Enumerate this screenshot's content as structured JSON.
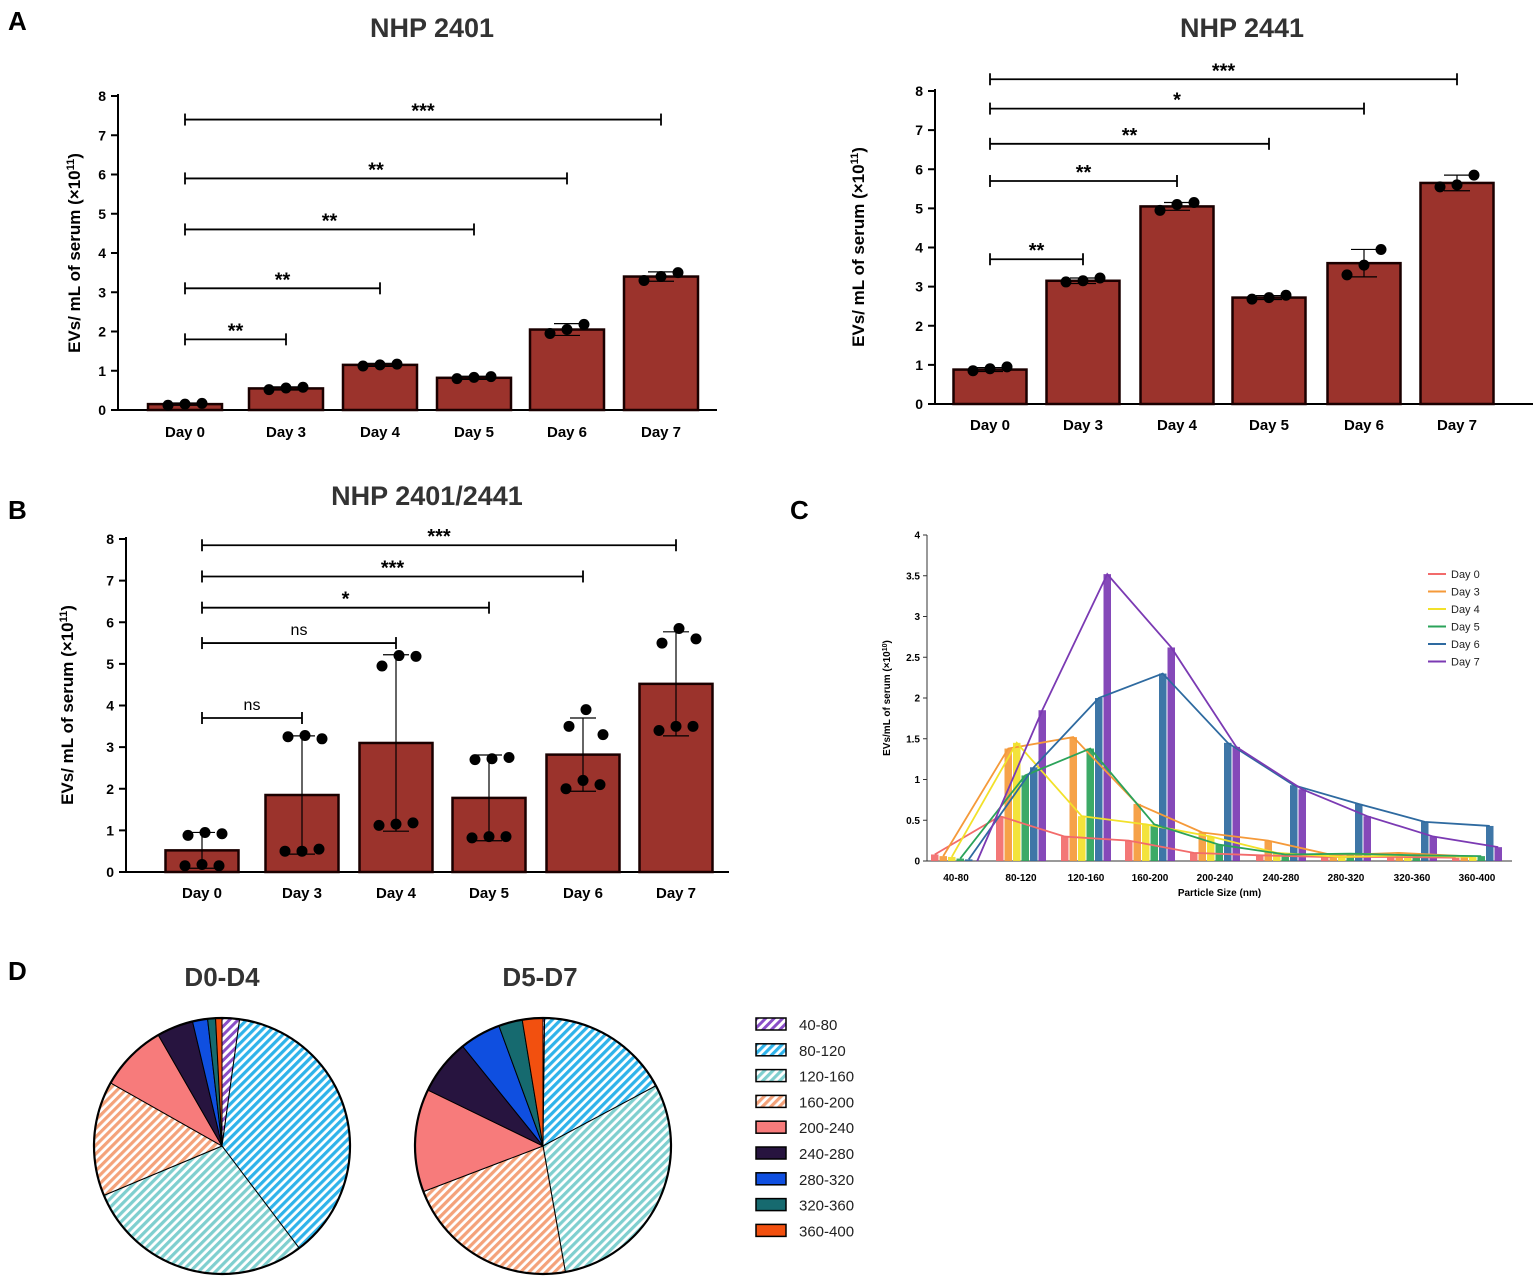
{
  "panel_labels": {
    "A": "A",
    "B": "B",
    "C": "C",
    "D": "D"
  },
  "chart_data": [
    {
      "id": "A1",
      "type": "bar",
      "title": "NHP 2401",
      "ylabel": "EVs/ mL of serum (×10",
      "ylabel_sup": "11",
      "ylabel_close": ")",
      "categories": [
        "Day 0",
        "Day 3",
        "Day 4",
        "Day 5",
        "Day 6",
        "Day 7"
      ],
      "values": [
        0.15,
        0.55,
        1.15,
        0.82,
        2.05,
        3.4
      ],
      "errors": [
        0.03,
        0.04,
        0.04,
        0.04,
        0.15,
        0.12
      ],
      "points": [
        [
          0.12,
          0.15,
          0.17
        ],
        [
          0.52,
          0.56,
          0.58
        ],
        [
          1.12,
          1.15,
          1.17
        ],
        [
          0.8,
          0.83,
          0.85
        ],
        [
          1.95,
          2.05,
          2.18
        ],
        [
          3.3,
          3.4,
          3.5
        ]
      ],
      "ylim": [
        0,
        8
      ],
      "yticks": [
        "0",
        "1",
        "2",
        "3",
        "4",
        "5",
        "6",
        "7",
        "8"
      ],
      "comparisons": [
        {
          "to": 1,
          "label": "**",
          "y": 1.8
        },
        {
          "to": 2,
          "label": "**",
          "y": 3.1
        },
        {
          "to": 3,
          "label": "**",
          "y": 4.6
        },
        {
          "to": 4,
          "label": "**",
          "y": 5.9
        },
        {
          "to": 5,
          "label": "***",
          "y": 7.4
        }
      ]
    },
    {
      "id": "A2",
      "type": "bar",
      "title": "NHP 2441",
      "ylabel": "EVs/ mL of serum (×10",
      "ylabel_sup": "11",
      "ylabel_close": ")",
      "categories": [
        "Day 0",
        "Day 3",
        "Day 4",
        "Day 5",
        "Day 6",
        "Day 7"
      ],
      "values": [
        0.88,
        3.15,
        5.05,
        2.72,
        3.6,
        5.65
      ],
      "errors": [
        0.05,
        0.07,
        0.1,
        0.05,
        0.35,
        0.2
      ],
      "points": [
        [
          0.85,
          0.9,
          0.95
        ],
        [
          3.12,
          3.15,
          3.22
        ],
        [
          4.95,
          5.1,
          5.15
        ],
        [
          2.68,
          2.72,
          2.78
        ],
        [
          3.3,
          3.55,
          3.95
        ],
        [
          5.55,
          5.6,
          5.85
        ]
      ],
      "ylim": [
        0,
        8
      ],
      "yticks": [
        "0",
        "1",
        "2",
        "3",
        "4",
        "5",
        "6",
        "7",
        "8"
      ],
      "comparisons": [
        {
          "to": 1,
          "label": "**",
          "y": 3.7
        },
        {
          "to": 2,
          "label": "**",
          "y": 5.7
        },
        {
          "to": 3,
          "label": "**",
          "y": 6.65
        },
        {
          "to": 4,
          "label": "*",
          "y": 7.55
        },
        {
          "to": 5,
          "label": "***",
          "y": 8.3
        }
      ]
    },
    {
      "id": "B",
      "type": "bar",
      "title": "NHP 2401/2441",
      "ylabel": "EVs/ mL of serum (×10",
      "ylabel_sup": "11",
      "ylabel_close": ")",
      "categories": [
        "Day 0",
        "Day 3",
        "Day 4",
        "Day 5",
        "Day 6",
        "Day 7"
      ],
      "values": [
        0.52,
        1.85,
        3.1,
        1.78,
        2.82,
        4.52
      ],
      "errors": [
        0.43,
        1.42,
        2.12,
        1.03,
        0.88,
        1.25
      ],
      "points": [
        [
          0.15,
          0.18,
          0.15,
          0.88,
          0.95,
          0.92
        ],
        [
          0.5,
          0.5,
          0.55,
          3.25,
          3.28,
          3.2
        ],
        [
          1.12,
          1.15,
          1.18,
          4.95,
          5.2,
          5.18
        ],
        [
          0.82,
          0.85,
          0.85,
          2.7,
          2.72,
          2.75
        ],
        [
          2.0,
          2.2,
          2.1,
          3.5,
          3.9,
          3.3
        ],
        [
          3.4,
          3.5,
          3.5,
          5.5,
          5.85,
          5.6
        ]
      ],
      "ylim": [
        0,
        8
      ],
      "yticks": [
        "0",
        "1",
        "2",
        "3",
        "4",
        "5",
        "6",
        "7",
        "8"
      ],
      "comparisons": [
        {
          "to": 1,
          "label": "ns",
          "y": 3.7
        },
        {
          "to": 2,
          "label": "ns",
          "y": 5.5
        },
        {
          "to": 3,
          "label": "*",
          "y": 6.35
        },
        {
          "to": 4,
          "label": "***",
          "y": 7.1
        },
        {
          "to": 5,
          "label": "***",
          "y": 7.85
        }
      ]
    },
    {
      "id": "C",
      "type": "bar",
      "title": "",
      "xlabel": "Particle Size (nm)",
      "ylabel": "EVs/mL of serum  (×10",
      "ylabel_sup": "10",
      "ylabel_close": ")",
      "categories": [
        "40-80",
        "80-120",
        "120-160",
        "160-200",
        "200-240",
        "240-280",
        "280-320",
        "320-360",
        "360-400"
      ],
      "ylim": [
        0,
        4
      ],
      "yticks": [
        "0",
        "0.5",
        "1",
        "1.5",
        "2",
        "2.5",
        "3",
        "3.5",
        "4"
      ],
      "series": [
        {
          "name": "Day 0",
          "color": "#f26b6b",
          "values": [
            0.08,
            0.55,
            0.3,
            0.25,
            0.1,
            0.07,
            0.05,
            0.05,
            0.04
          ]
        },
        {
          "name": "Day 3",
          "color": "#f59a3a",
          "values": [
            0.06,
            1.38,
            1.52,
            0.7,
            0.35,
            0.25,
            0.07,
            0.1,
            0.06
          ]
        },
        {
          "name": "Day 4",
          "color": "#f2e12a",
          "values": [
            0.05,
            1.45,
            0.55,
            0.45,
            0.3,
            0.1,
            0.05,
            0.07,
            0.05
          ]
        },
        {
          "name": "Day 5",
          "color": "#2ba35a",
          "values": [
            0.03,
            1.05,
            1.38,
            0.45,
            0.2,
            0.08,
            0.09,
            0.07,
            0.06
          ]
        },
        {
          "name": "Day 6",
          "color": "#2e6aa0",
          "values": [
            0.02,
            1.15,
            2.0,
            2.3,
            1.45,
            0.93,
            0.7,
            0.48,
            0.43
          ]
        },
        {
          "name": "Day 7",
          "color": "#7b3ab3",
          "values": [
            0.0,
            1.85,
            3.52,
            2.62,
            1.4,
            0.88,
            0.55,
            0.3,
            0.17
          ]
        }
      ]
    },
    {
      "id": "D1",
      "type": "pie",
      "title": "D0-D4",
      "labels": [
        "40-80",
        "80-120",
        "120-160",
        "160-200",
        "200-240",
        "240-280",
        "280-320",
        "320-360",
        "360-400"
      ],
      "values": [
        2.2,
        37.5,
        29.0,
        14.5,
        8.5,
        4.6,
        1.9,
        1.0,
        0.8
      ]
    },
    {
      "id": "D2",
      "type": "pie",
      "title": "D5-D7",
      "labels": [
        "40-80",
        "80-120",
        "120-160",
        "160-200",
        "200-240",
        "240-280",
        "280-320",
        "320-360",
        "360-400"
      ],
      "values": [
        0.2,
        17.0,
        30.0,
        22.0,
        13.0,
        7.0,
        5.2,
        3.0,
        2.6
      ]
    }
  ],
  "pie_legend": {
    "items": [
      {
        "label": "40-80",
        "color": "#8a4fc7",
        "hatch": true
      },
      {
        "label": "80-120",
        "color": "#2fb3ea",
        "hatch": true
      },
      {
        "label": "120-160",
        "color": "#7fcfcf",
        "hatch": true
      },
      {
        "label": "160-200",
        "color": "#f4a27a",
        "hatch": true
      },
      {
        "label": "200-240",
        "color": "#f77b7b",
        "hatch": false
      },
      {
        "label": "240-280",
        "color": "#27143f",
        "hatch": false
      },
      {
        "label": "280-320",
        "color": "#0f4fe0",
        "hatch": false
      },
      {
        "label": "320-360",
        "color": "#166a6f",
        "hatch": false
      },
      {
        "label": "360-400",
        "color": "#f2500f",
        "hatch": false
      }
    ]
  },
  "colors": {
    "bar": "#9b332c",
    "bar_stroke": "#1a0000",
    "point": "#000000"
  }
}
